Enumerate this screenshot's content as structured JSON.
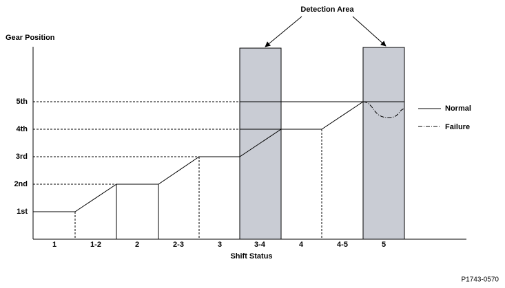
{
  "title": "Detection Area",
  "y_axis": {
    "label": "Gear Position",
    "levels": [
      "1st",
      "2nd",
      "3rd",
      "4th",
      "5th"
    ]
  },
  "x_axis": {
    "label": "Shift Status",
    "categories": [
      "1",
      "1-2",
      "2",
      "2-3",
      "3",
      "3-4",
      "4",
      "4-5",
      "5"
    ]
  },
  "legend": [
    "Normal",
    "Failure"
  ],
  "code": "P1743-0570"
}
